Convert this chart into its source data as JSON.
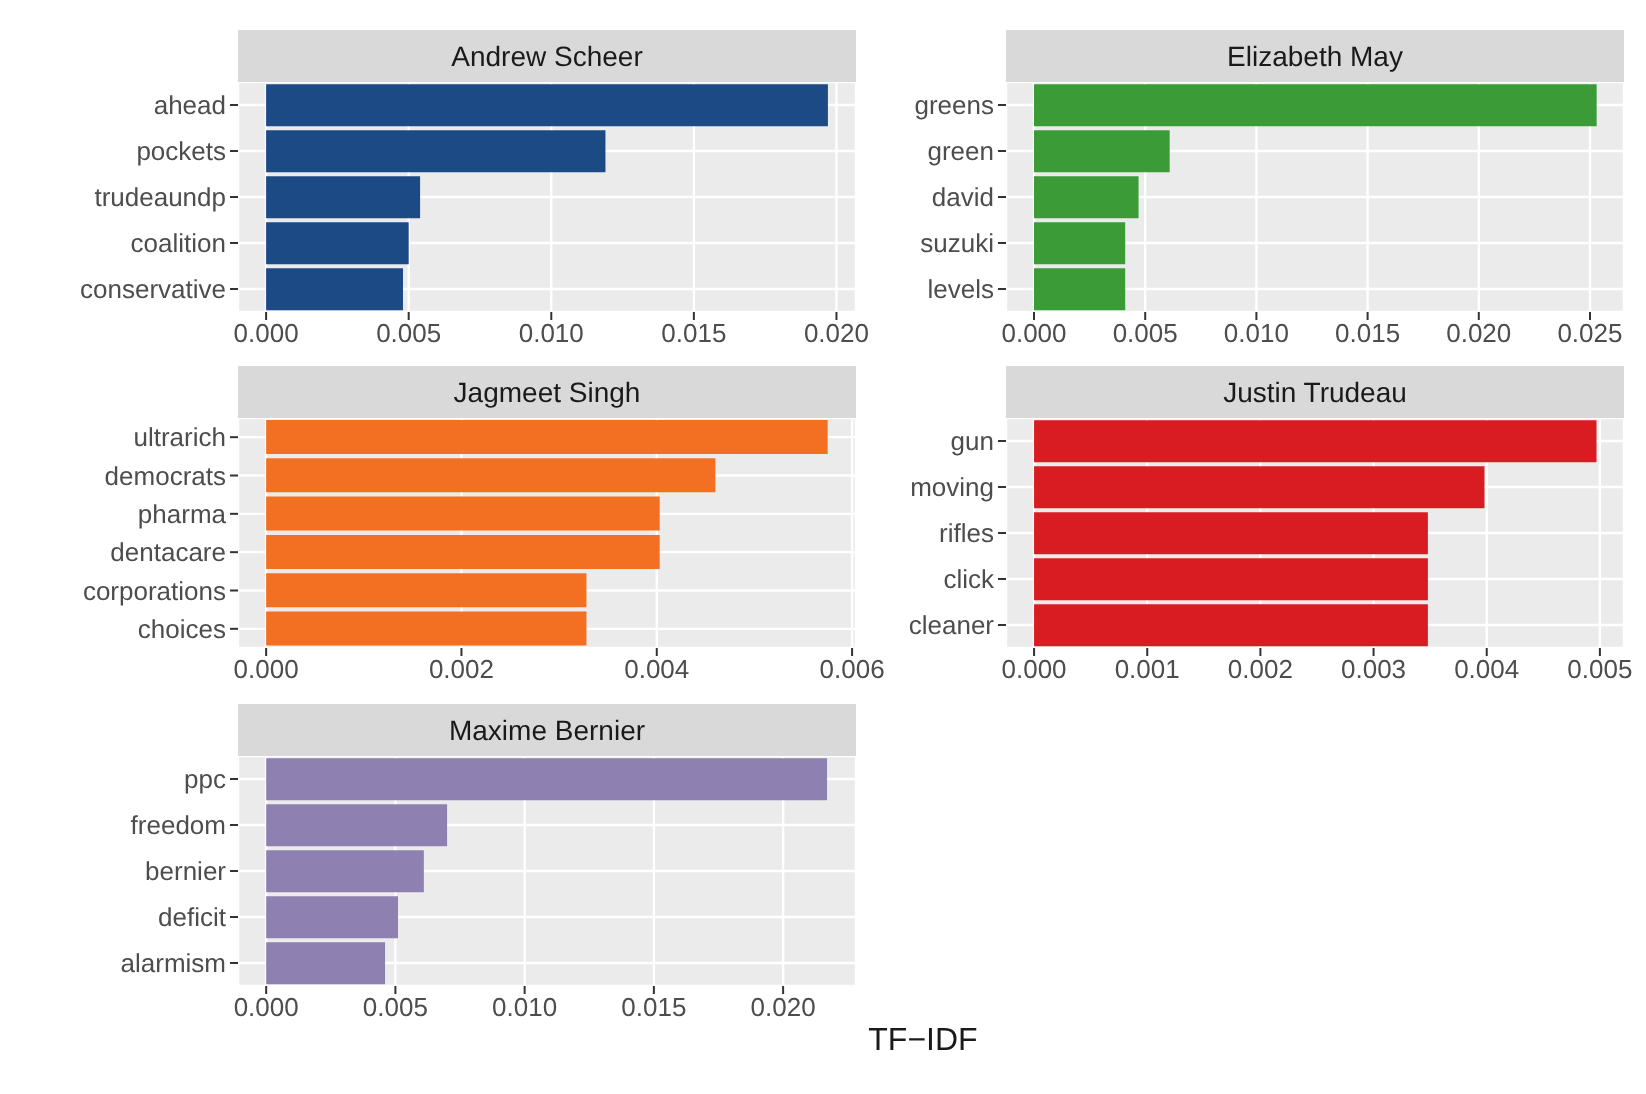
{
  "chart_data": [
    {
      "type": "bar",
      "orientation": "horizontal",
      "title": "Andrew Scheer",
      "categories": [
        "ahead",
        "pockets",
        "trudeaundp",
        "coalition",
        "conservative"
      ],
      "values": [
        0.0197,
        0.0119,
        0.0054,
        0.005,
        0.0048
      ],
      "color": "#1c4a85",
      "xlim": [
        -0.000985,
        0.020685
      ],
      "xticks": [
        {
          "value": 0,
          "label": "0.000"
        },
        {
          "value": 0.005,
          "label": "0.005"
        },
        {
          "value": 0.01,
          "label": "0.010"
        },
        {
          "value": 0.015,
          "label": "0.015"
        },
        {
          "value": 0.02,
          "label": "0.020"
        }
      ],
      "grid": true
    },
    {
      "type": "bar",
      "orientation": "horizontal",
      "title": "Elizabeth May",
      "categories": [
        "greens",
        "green",
        "david",
        "suzuki",
        "levels"
      ],
      "values": [
        0.0253,
        0.0061,
        0.0047,
        0.0041,
        0.0041
      ],
      "color": "#3b9b37",
      "xlim": [
        -0.00126,
        0.02653
      ],
      "xticks": [
        {
          "value": 0,
          "label": "0.000"
        },
        {
          "value": 0.005,
          "label": "0.005"
        },
        {
          "value": 0.01,
          "label": "0.010"
        },
        {
          "value": 0.015,
          "label": "0.015"
        },
        {
          "value": 0.02,
          "label": "0.020"
        },
        {
          "value": 0.025,
          "label": "0.025"
        }
      ],
      "grid": true
    },
    {
      "type": "bar",
      "orientation": "horizontal",
      "title": "Jagmeet Singh",
      "categories": [
        "ultrarich",
        "democrats",
        "pharma",
        "dentacare",
        "corporations",
        "choices"
      ],
      "values": [
        0.00575,
        0.0046,
        0.00403,
        0.00403,
        0.00328,
        0.00328
      ],
      "color": "#f37022",
      "xlim": [
        -0.000288,
        0.00604
      ],
      "xticks": [
        {
          "value": 0,
          "label": "0.000"
        },
        {
          "value": 0.002,
          "label": "0.002"
        },
        {
          "value": 0.004,
          "label": "0.004"
        },
        {
          "value": 0.006,
          "label": "0.006"
        }
      ],
      "grid": true
    },
    {
      "type": "bar",
      "orientation": "horizontal",
      "title": "Justin Trudeau",
      "categories": [
        "gun",
        "moving",
        "rifles",
        "click",
        "cleaner"
      ],
      "values": [
        0.00497,
        0.00398,
        0.00348,
        0.00348,
        0.00348
      ],
      "color": "#d91c22",
      "xlim": [
        -0.000248,
        0.005213
      ],
      "xticks": [
        {
          "value": 0,
          "label": "0.000"
        },
        {
          "value": 0.001,
          "label": "0.001"
        },
        {
          "value": 0.002,
          "label": "0.002"
        },
        {
          "value": 0.003,
          "label": "0.003"
        },
        {
          "value": 0.004,
          "label": "0.004"
        },
        {
          "value": 0.005,
          "label": "0.005"
        }
      ],
      "grid": true
    },
    {
      "type": "bar",
      "orientation": "horizontal",
      "title": "Maxime Bernier",
      "categories": [
        "ppc",
        "freedom",
        "bernier",
        "deficit",
        "alarmism"
      ],
      "values": [
        0.0217,
        0.007,
        0.0061,
        0.0051,
        0.0046
      ],
      "color": "#8e80b0",
      "xlim": [
        -0.00109,
        0.02282
      ],
      "xticks": [
        {
          "value": 0,
          "label": "0.000"
        },
        {
          "value": 0.005,
          "label": "0.005"
        },
        {
          "value": 0.01,
          "label": "0.010"
        },
        {
          "value": 0.015,
          "label": "0.015"
        },
        {
          "value": 0.02,
          "label": "0.020"
        }
      ],
      "grid": true,
      "xlabel": "TF−IDF"
    }
  ]
}
